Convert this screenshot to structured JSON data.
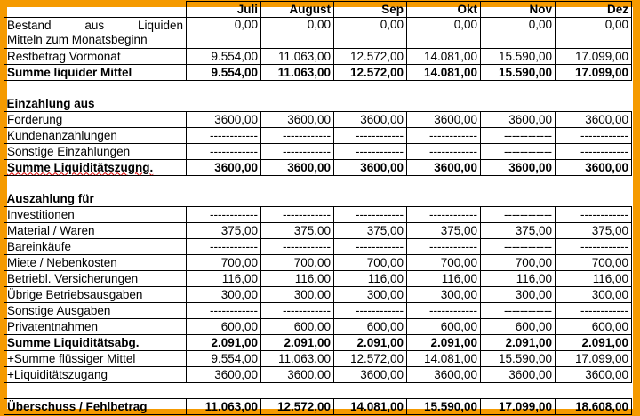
{
  "months": [
    "Juli",
    "August",
    "Sep",
    "Okt",
    "Nov",
    "Dez"
  ],
  "bestand": {
    "label_line1": "Bestand aus Liquiden",
    "label_line2": "Mitteln zum Monatsbeginn",
    "values": [
      "0,00",
      "0,00",
      "0,00",
      "0,00",
      "0,00",
      "0,00"
    ]
  },
  "restbetrag": {
    "label": "Restbetrag Vormonat",
    "values": [
      "9.554,00",
      "11.063,00",
      "12.572,00",
      "14.081,00",
      "15.590,00",
      "17.099,00"
    ]
  },
  "summe_liquider": {
    "label": "Summe liquider Mittel",
    "values": [
      "9.554,00",
      "11.063,00",
      "12.572,00",
      "14.081,00",
      "15.590,00",
      "17.099,00"
    ]
  },
  "einzahlung_title": "Einzahlung aus",
  "einzahlung_rows": [
    {
      "label": "Forderung",
      "values": [
        "3600,00",
        "3600,00",
        "3600,00",
        "3600,00",
        "3600,00",
        "3600,00"
      ]
    },
    {
      "label": "Kundenanzahlungen",
      "values": [
        "------------",
        "------------",
        "------------",
        "------------",
        "------------",
        "------------"
      ]
    },
    {
      "label": "Sonstige Einzahlungen",
      "values": [
        "------------",
        "------------",
        "------------",
        "------------",
        "------------",
        "------------"
      ]
    }
  ],
  "summe_zugang": {
    "label": "Summe Liquiditätszugng.",
    "values": [
      "3600,00",
      "3600,00",
      "3600,00",
      "3600,00",
      "3600,00",
      "3600,00"
    ]
  },
  "auszahlung_title": "Auszahlung für",
  "auszahlung_rows": [
    {
      "label": "Investitionen",
      "values": [
        "------------",
        "------------",
        "------------",
        "------------",
        "------------",
        "------------"
      ]
    },
    {
      "label": "Material / Waren",
      "values": [
        "375,00",
        "375,00",
        "375,00",
        "375,00",
        "375,00",
        "375,00"
      ]
    },
    {
      "label": "Bareinkäufe",
      "values": [
        "------------",
        "------------",
        "------------",
        "------------",
        "------------",
        "------------"
      ]
    },
    {
      "label": "Miete / Nebenkosten",
      "values": [
        "700,00",
        "700,00",
        "700,00",
        "700,00",
        "700,00",
        "700,00"
      ]
    },
    {
      "label": "Betriebl. Versicherungen",
      "values": [
        "116,00",
        "116,00",
        "116,00",
        "116,00",
        "116,00",
        "116,00"
      ]
    },
    {
      "label": "Übrige Betriebsausgaben",
      "values": [
        "300,00",
        "300,00",
        "300,00",
        "300,00",
        "300,00",
        "300,00"
      ]
    },
    {
      "label": "Sonstige Ausgaben",
      "values": [
        "------------",
        "------------",
        "------------",
        "------------",
        "------------",
        "------------"
      ]
    },
    {
      "label": "Privatentnahmen",
      "values": [
        "600,00",
        "600,00",
        "600,00",
        "600,00",
        "600,00",
        "600,00"
      ]
    }
  ],
  "summe_abgang": {
    "label": "Summe Liquiditätsabg.",
    "values": [
      "2.091,00",
      "2.091,00",
      "2.091,00",
      "2.091,00",
      "2.091,00",
      "2.091,00"
    ]
  },
  "plus_summe": {
    "label": "+Summe flüssiger Mittel",
    "values": [
      "9.554,00",
      "11.063,00",
      "12.572,00",
      "14.081,00",
      "15.590,00",
      "17.099,00"
    ]
  },
  "plus_zugang": {
    "label": "+Liquiditätszugang",
    "values": [
      "3600,00",
      "3600,00",
      "3600,00",
      "3600,00",
      "3600,00",
      "3600,00"
    ]
  },
  "ueberschuss": {
    "label": "Überschuss / Fehlbetrag",
    "values": [
      "11.063,00",
      "12.572,00",
      "14.081,00",
      "15.590,00",
      "17.099,00",
      "18.608,00"
    ]
  },
  "colors": {
    "frame": "#F59A00"
  }
}
